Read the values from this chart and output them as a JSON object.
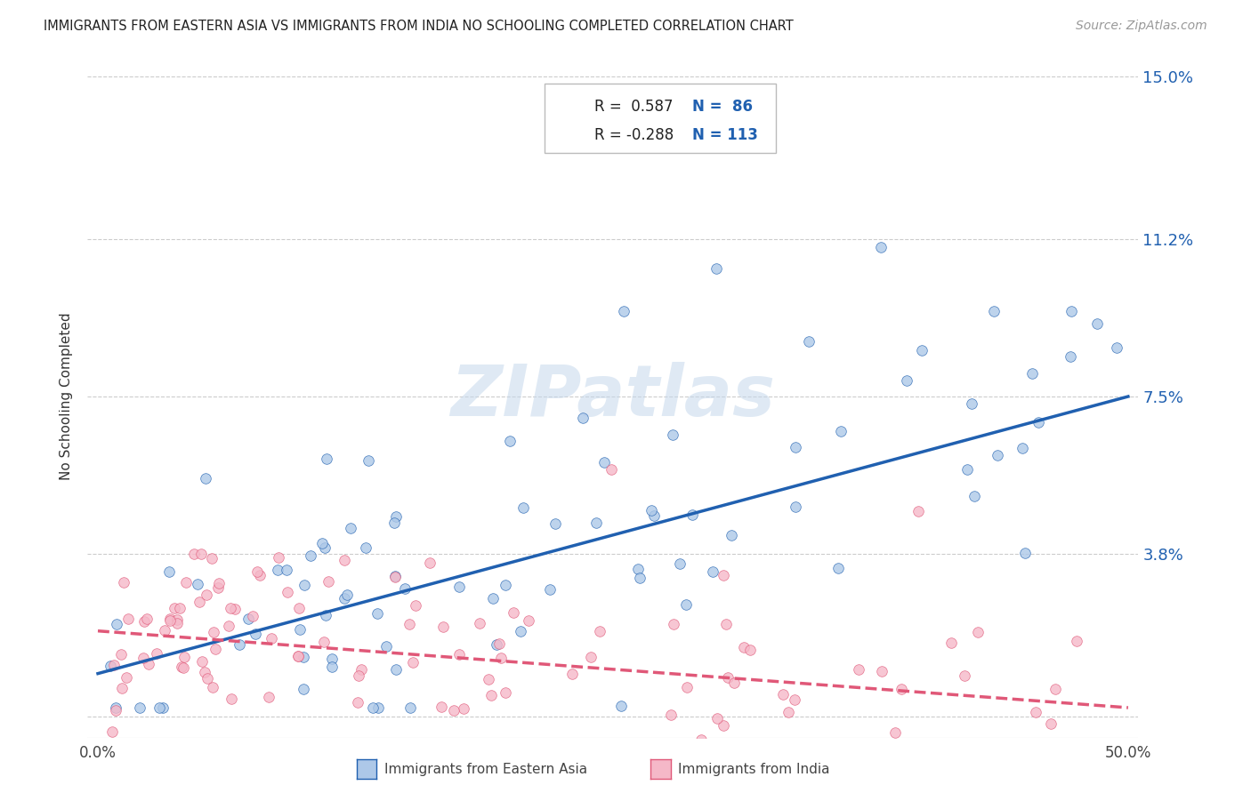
{
  "title": "IMMIGRANTS FROM EASTERN ASIA VS IMMIGRANTS FROM INDIA NO SCHOOLING COMPLETED CORRELATION CHART",
  "source": "Source: ZipAtlas.com",
  "ylabel": "No Schooling Completed",
  "xlim": [
    0.0,
    0.5
  ],
  "ylim": [
    -0.005,
    0.155
  ],
  "yticks": [
    0.0,
    0.038,
    0.075,
    0.112,
    0.15
  ],
  "ytick_labels": [
    "",
    "3.8%",
    "7.5%",
    "11.2%",
    "15.0%"
  ],
  "xtick_labels": [
    "0.0%",
    "50.0%"
  ],
  "color_eastern_asia": "#adc8e8",
  "color_india": "#f5b8c8",
  "line_color_eastern_asia": "#2060b0",
  "line_color_india": "#e05878",
  "watermark_text": "ZIPatlas",
  "background_color": "#ffffff",
  "legend_r1_text": "R =  0.587",
  "legend_n1_text": "N =  86",
  "legend_r2_text": "R = -0.288",
  "legend_n2_text": "N = 113",
  "legend_label1": "Immigrants from Eastern Asia",
  "legend_label2": "Immigrants from India",
  "ea_reg_line": [
    [
      0.0,
      0.5
    ],
    [
      0.01,
      0.075
    ]
  ],
  "india_reg_line": [
    [
      0.0,
      0.5
    ],
    [
      0.02,
      0.002
    ]
  ]
}
